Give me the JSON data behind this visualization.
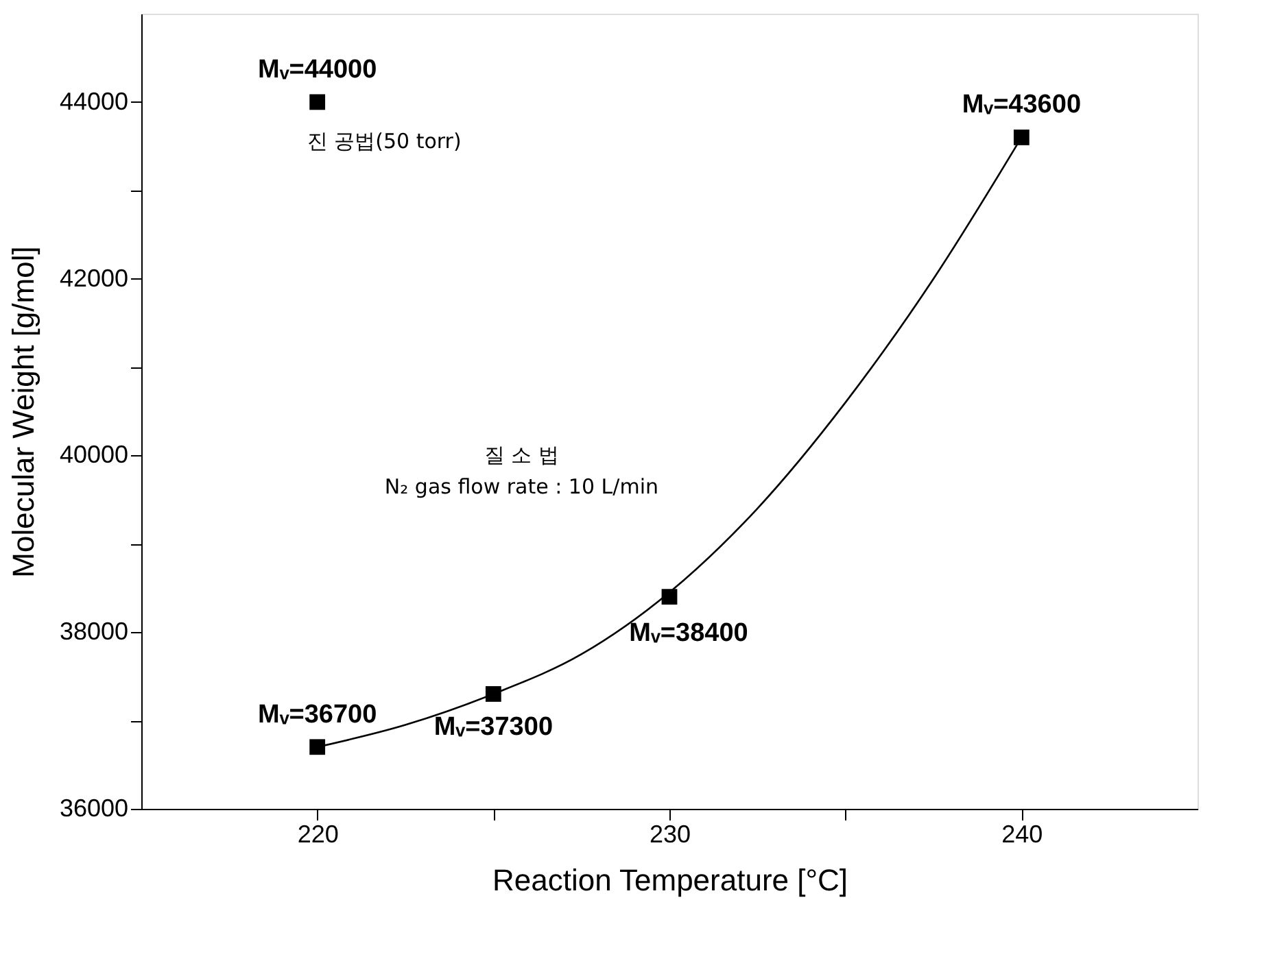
{
  "chart_data": {
    "type": "scatter",
    "xlabel": "Reaction Temperature [°C]",
    "ylabel": "Molecular Weight [g/mol]",
    "xlim": [
      215,
      245
    ],
    "ylim": [
      36000,
      45000
    ],
    "xticks": [
      220,
      {
        "value": 225,
        "label": null
      },
      230,
      {
        "value": 235,
        "label": null
      },
      240
    ],
    "yticks": [
      36000,
      {
        "value": 37000,
        "label": null
      },
      38000,
      {
        "value": 39000,
        "label": null
      },
      40000,
      {
        "value": 41000,
        "label": null
      },
      42000,
      {
        "value": 43000,
        "label": null
      },
      44000
    ],
    "grid": false,
    "legend": false,
    "marker": "square",
    "series": [
      {
        "color": "#000000",
        "x": [
          220
        ],
        "values": [
          44000
        ]
      },
      {
        "color": "#000000",
        "x": [
          220,
          225,
          230,
          240
        ],
        "values": [
          36700,
          37300,
          38400,
          43600
        ]
      },
      {
        "type": "line",
        "color": "#000000",
        "line_style": "solid",
        "marker": "none",
        "x": [
          220,
          222.5,
          225,
          227.5,
          230,
          232.5,
          235,
          237.5,
          240
        ],
        "values": [
          36700,
          36950,
          37300,
          37750,
          38450,
          39400,
          40600,
          42000,
          43600
        ]
      }
    ],
    "annotations": [
      {
        "text": "Mᵥ=44000",
        "x": 220,
        "y": 44000
      },
      {
        "text": "Mᵥ=36700",
        "x": 220,
        "y": 36700
      },
      {
        "text": "Mᵥ=37300",
        "x": 225,
        "y": 37300
      },
      {
        "text": "Mᵥ=38400",
        "x": 230,
        "y": 38400
      },
      {
        "text": "Mᵥ=43600",
        "x": 240,
        "y": 43600
      },
      "진 공법(50 torr)",
      "질 소 법",
      "N₂ gas flow rate : 10 L/min"
    ]
  }
}
